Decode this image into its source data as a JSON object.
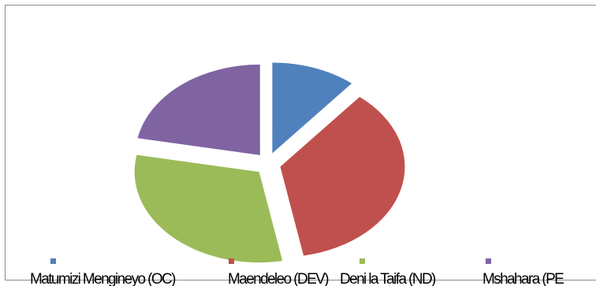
{
  "chart_data": {
    "type": "pie",
    "exploded": true,
    "categories": [
      "Matumizi Mengineyo (OC)",
      "Maendeleo (DEV)",
      "Deni la Taifa (ND)",
      "Mshahara (PE"
    ],
    "values": [
      11,
      36,
      31,
      22
    ],
    "colors": [
      "#4f81bd",
      "#c0504d",
      "#9bbb59",
      "#8064a2"
    ],
    "legend_position": "bottom"
  }
}
